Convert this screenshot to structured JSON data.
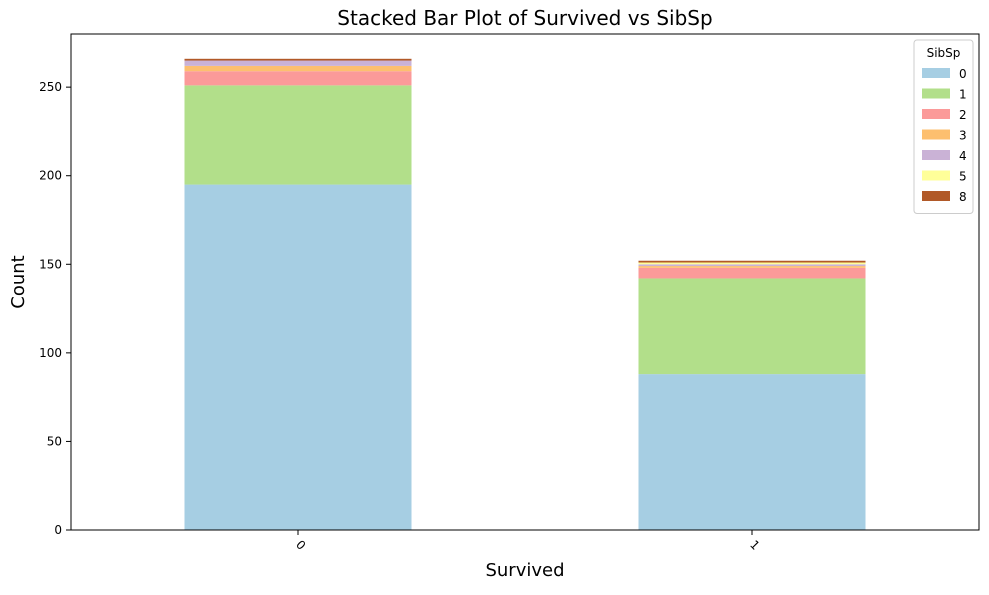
{
  "chart_data": {
    "type": "bar",
    "stacked": true,
    "title": "Stacked Bar Plot of Survived vs SibSp",
    "xlabel": "Survived",
    "ylabel": "Count",
    "categories": [
      "0",
      "1"
    ],
    "ylim": [
      0,
      280
    ],
    "yticks": [
      0,
      50,
      100,
      150,
      200,
      250
    ],
    "grid": false,
    "legend": {
      "title": "SibSp",
      "placement": "top-right"
    },
    "series": [
      {
        "name": "0",
        "values": [
          195,
          88
        ],
        "color": "#a6cee3"
      },
      {
        "name": "1",
        "values": [
          56,
          54
        ],
        "color": "#b2df8a"
      },
      {
        "name": "2",
        "values": [
          8,
          6
        ],
        "color": "#fb9a99"
      },
      {
        "name": "3",
        "values": [
          3,
          1
        ],
        "color": "#fdbf6f"
      },
      {
        "name": "4",
        "values": [
          3,
          1
        ],
        "color": "#cab2d6"
      },
      {
        "name": "5",
        "values": [
          0,
          1
        ],
        "color": "#ffff99"
      },
      {
        "name": "8",
        "values": [
          1,
          1
        ],
        "color": "#b15928"
      }
    ]
  }
}
